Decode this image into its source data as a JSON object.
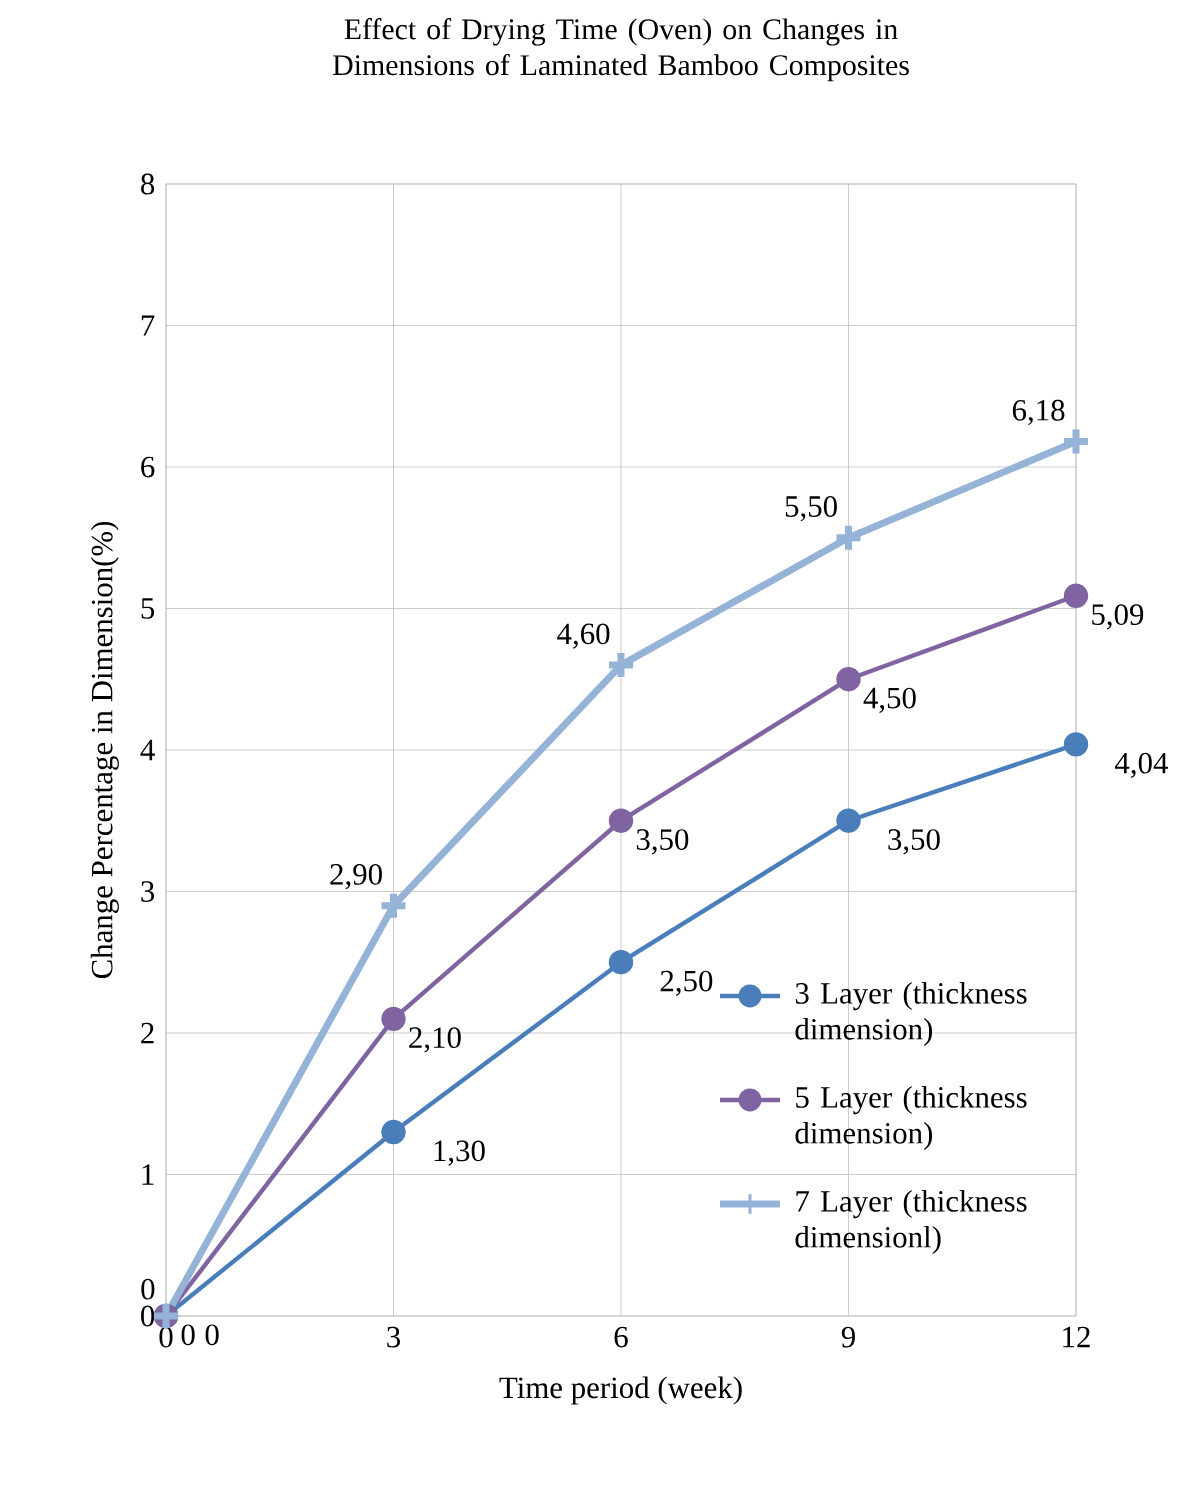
{
  "chart_data": {
    "type": "line",
    "title": "Effect of Drying Time (Oven) on Changes in Dimensions of Laminated Bamboo Composites",
    "xlabel": "Time period (week)",
    "ylabel": "Change Percentage in Dimension(%)",
    "x": [
      0,
      3,
      6,
      9,
      12
    ],
    "series": [
      {
        "name": "3 Layer (thickness dimension)",
        "color": "#4a7ebb",
        "marker": "circle",
        "values": [
          0,
          1.3,
          2.5,
          3.5,
          4.04
        ],
        "value_labels": [
          "0",
          "1,30",
          "2,50",
          "3,50",
          "4,04"
        ]
      },
      {
        "name": "5 Layer (thickness dimension)",
        "color": "#7f64a1",
        "marker": "circle",
        "values": [
          0,
          2.1,
          3.5,
          4.5,
          5.09
        ],
        "value_labels": [
          "0",
          "2,10",
          "3,50",
          "4,50",
          "5,09"
        ]
      },
      {
        "name": "7 Layer (thickness dimensionl)",
        "color": "#95b3d7",
        "marker": "cross",
        "values": [
          0,
          2.9,
          4.6,
          5.5,
          6.18
        ],
        "value_labels": [
          "0",
          "2,90",
          "4,60",
          "5,50",
          "6,18"
        ]
      }
    ],
    "xlim": [
      0,
      12
    ],
    "xticks": [
      0,
      3,
      6,
      9,
      12
    ],
    "ylim": [
      0,
      8
    ],
    "yticks": [
      0,
      1,
      2,
      3,
      4,
      5,
      6,
      7,
      8
    ],
    "grid": true,
    "legend": "bottom right",
    "line_style": "solid"
  }
}
